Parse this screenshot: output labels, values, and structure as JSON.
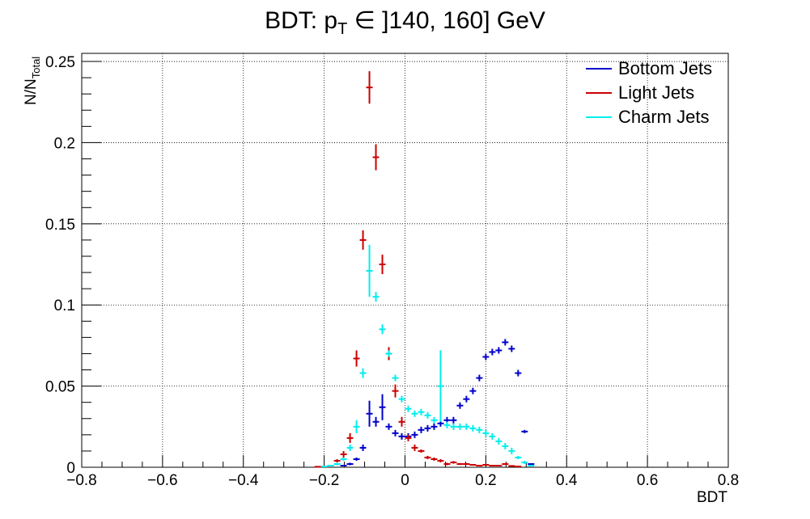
{
  "chart_data": {
    "type": "scatter",
    "title": {
      "prefix": "BDT: p",
      "sub": "T",
      "suffix": " ∈ ]140, 160] GeV"
    },
    "xlabel": "BDT",
    "ylabel": {
      "base": "N/N",
      "sub": "Total"
    },
    "xlim": [
      -0.8,
      0.8
    ],
    "ylim": [
      0,
      0.255
    ],
    "xticks": [
      -0.8,
      -0.6,
      -0.4,
      -0.2,
      0,
      0.2,
      0.4,
      0.6,
      0.8
    ],
    "xtick_labels": [
      "−0.8",
      "−0.6",
      "−0.4",
      "−0.2",
      "0",
      "0.2",
      "0.4",
      "0.6",
      "0.8"
    ],
    "yticks": [
      0,
      0.05,
      0.1,
      0.15,
      0.2,
      0.25
    ],
    "ytick_labels": [
      "0",
      "0.05",
      "0.1",
      "0.15",
      "0.2",
      "0.25"
    ],
    "grid": true,
    "legend_position": "top-right",
    "bin_width": 0.016,
    "series": [
      {
        "name": "Bottom Jets",
        "color": "#0000cc",
        "points": [
          [
            -0.152,
            0.001,
            0.0005
          ],
          [
            -0.136,
            0.002,
            0.0008
          ],
          [
            -0.12,
            0.005,
            0.001
          ],
          [
            -0.104,
            0.012,
            0.002
          ],
          [
            -0.088,
            0.033,
            0.008
          ],
          [
            -0.072,
            0.028,
            0.003
          ],
          [
            -0.056,
            0.037,
            0.008
          ],
          [
            -0.04,
            0.025,
            0.002
          ],
          [
            -0.024,
            0.021,
            0.002
          ],
          [
            -0.008,
            0.019,
            0.002
          ],
          [
            0.008,
            0.019,
            0.002
          ],
          [
            0.024,
            0.02,
            0.002
          ],
          [
            0.04,
            0.023,
            0.002
          ],
          [
            0.056,
            0.024,
            0.002
          ],
          [
            0.072,
            0.025,
            0.002
          ],
          [
            0.088,
            0.027,
            0.002
          ],
          [
            0.104,
            0.029,
            0.002
          ],
          [
            0.12,
            0.029,
            0.002
          ],
          [
            0.136,
            0.038,
            0.002
          ],
          [
            0.152,
            0.042,
            0.002
          ],
          [
            0.168,
            0.047,
            0.002
          ],
          [
            0.184,
            0.055,
            0.002
          ],
          [
            0.2,
            0.068,
            0.002
          ],
          [
            0.216,
            0.071,
            0.002
          ],
          [
            0.232,
            0.072,
            0.002
          ],
          [
            0.248,
            0.077,
            0.002
          ],
          [
            0.264,
            0.073,
            0.002
          ],
          [
            0.28,
            0.058,
            0.002
          ],
          [
            0.296,
            0.022,
            0.001
          ],
          [
            0.312,
            0.002,
            0.0005
          ]
        ]
      },
      {
        "name": "Light Jets",
        "color": "#cc0000",
        "points": [
          [
            -0.216,
            0.0003,
            0.0002
          ],
          [
            -0.2,
            0.0005,
            0.0003
          ],
          [
            -0.184,
            0.001,
            0.0005
          ],
          [
            -0.168,
            0.004,
            0.001
          ],
          [
            -0.152,
            0.008,
            0.002
          ],
          [
            -0.136,
            0.018,
            0.003
          ],
          [
            -0.12,
            0.067,
            0.005
          ],
          [
            -0.104,
            0.14,
            0.006
          ],
          [
            -0.088,
            0.234,
            0.01
          ],
          [
            -0.072,
            0.191,
            0.008
          ],
          [
            -0.056,
            0.125,
            0.006
          ],
          [
            -0.04,
            0.07,
            0.004
          ],
          [
            -0.024,
            0.047,
            0.004
          ],
          [
            -0.008,
            0.028,
            0.003
          ],
          [
            0.008,
            0.018,
            0.002
          ],
          [
            0.024,
            0.012,
            0.002
          ],
          [
            0.04,
            0.01,
            0.001
          ],
          [
            0.056,
            0.006,
            0.001
          ],
          [
            0.072,
            0.005,
            0.001
          ],
          [
            0.088,
            0.004,
            0.001
          ],
          [
            0.104,
            0.002,
            0.0008
          ],
          [
            0.12,
            0.003,
            0.0008
          ],
          [
            0.136,
            0.002,
            0.0006
          ],
          [
            0.152,
            0.002,
            0.0006
          ],
          [
            0.168,
            0.0015,
            0.0005
          ],
          [
            0.184,
            0.001,
            0.0005
          ],
          [
            0.2,
            0.0015,
            0.0005
          ],
          [
            0.216,
            0.001,
            0.0004
          ],
          [
            0.232,
            0.001,
            0.0004
          ],
          [
            0.248,
            0.002,
            0.0005
          ],
          [
            0.264,
            0.0008,
            0.0003
          ],
          [
            0.28,
            0.0005,
            0.0003
          ]
        ]
      },
      {
        "name": "Charm Jets",
        "color": "#00eeee",
        "points": [
          [
            -0.2,
            0.0005,
            0.0003
          ],
          [
            -0.184,
            0.001,
            0.0005
          ],
          [
            -0.168,
            0.002,
            0.0008
          ],
          [
            -0.152,
            0.005,
            0.001
          ],
          [
            -0.136,
            0.012,
            0.002
          ],
          [
            -0.12,
            0.025,
            0.004
          ],
          [
            -0.104,
            0.058,
            0.003
          ],
          [
            -0.088,
            0.121,
            0.016
          ],
          [
            -0.072,
            0.105,
            0.003
          ],
          [
            -0.056,
            0.085,
            0.003
          ],
          [
            -0.04,
            0.07,
            0.002
          ],
          [
            -0.024,
            0.055,
            0.002
          ],
          [
            -0.008,
            0.042,
            0.002
          ],
          [
            0.008,
            0.036,
            0.002
          ],
          [
            0.024,
            0.033,
            0.002
          ],
          [
            0.04,
            0.034,
            0.002
          ],
          [
            0.056,
            0.032,
            0.002
          ],
          [
            0.072,
            0.029,
            0.002
          ],
          [
            0.088,
            0.05,
            0.022
          ],
          [
            0.104,
            0.026,
            0.002
          ],
          [
            0.12,
            0.025,
            0.002
          ],
          [
            0.136,
            0.025,
            0.002
          ],
          [
            0.152,
            0.025,
            0.002
          ],
          [
            0.168,
            0.024,
            0.002
          ],
          [
            0.184,
            0.023,
            0.002
          ],
          [
            0.2,
            0.021,
            0.002
          ],
          [
            0.216,
            0.019,
            0.002
          ],
          [
            0.232,
            0.016,
            0.002
          ],
          [
            0.248,
            0.013,
            0.002
          ],
          [
            0.264,
            0.01,
            0.002
          ],
          [
            0.28,
            0.006,
            0.001
          ],
          [
            0.296,
            0.003,
            0.001
          ],
          [
            0.312,
            0.001,
            0.0005
          ]
        ]
      }
    ]
  }
}
